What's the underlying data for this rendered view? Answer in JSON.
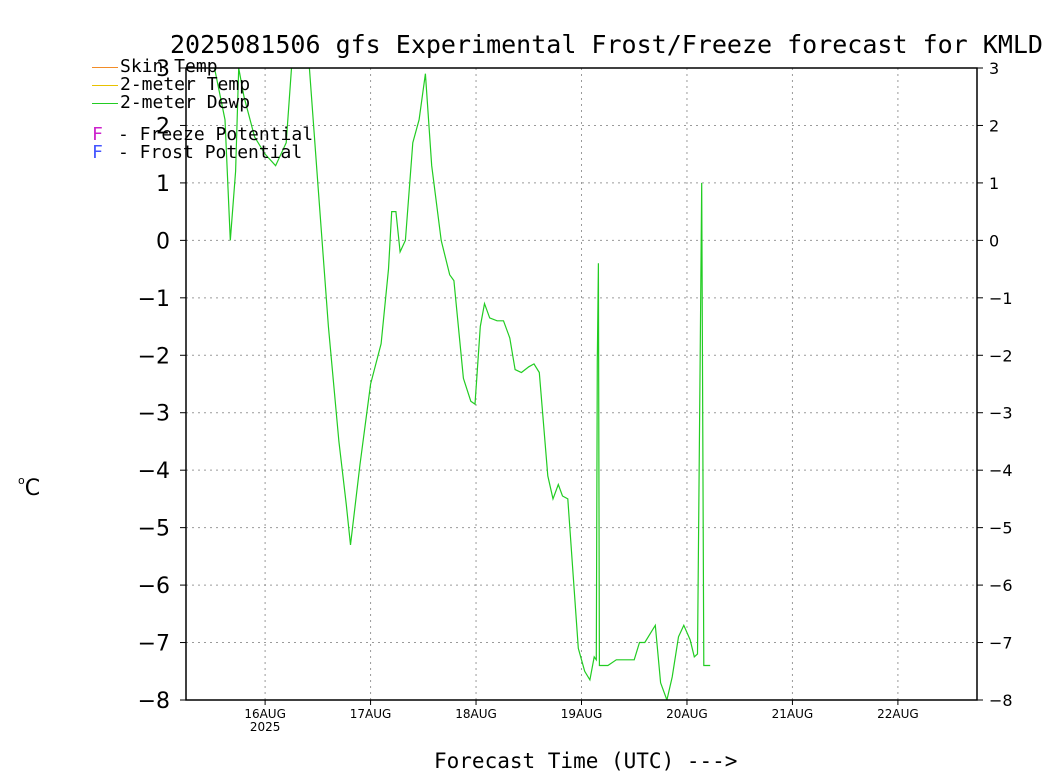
{
  "title": "2025081506 gfs Experimental Frost/Freeze forecast for KMLD",
  "ylabel_unit": "C",
  "ylabel_degree": "o",
  "xlabel": "Forecast Time (UTC) --->",
  "legend": {
    "skin_temp": {
      "label": "Skin Temp",
      "color": "#f28c28"
    },
    "temp_2m": {
      "label": "2-meter Temp",
      "color": "#e8c200"
    },
    "dewp_2m": {
      "label": "2-meter Dewp",
      "color": "#22cc22"
    },
    "freeze": {
      "letter": "F",
      "text": "- Freeze Potential",
      "color": "#cc22cc"
    },
    "frost": {
      "letter": "F",
      "text": "- Frost Potential",
      "color": "#4455ff"
    }
  },
  "chart_data": {
    "type": "line",
    "title": "2025081506 gfs Experimental Frost/Freeze forecast for KMLD",
    "xlabel": "Forecast Time (UTC) --->",
    "ylabel": "°C",
    "ylim": [
      -8,
      3
    ],
    "yticks": [
      -8,
      -7,
      -6,
      -5,
      -4,
      -3,
      -2,
      -1,
      0,
      1,
      2,
      3
    ],
    "x_ticks": [
      {
        "label": "16AUG",
        "sub": "2025",
        "day": 16.0
      },
      {
        "label": "17AUG",
        "sub": "",
        "day": 17.0
      },
      {
        "label": "18AUG",
        "sub": "",
        "day": 18.0
      },
      {
        "label": "19AUG",
        "sub": "",
        "day": 19.0
      },
      {
        "label": "20AUG",
        "sub": "",
        "day": 20.0
      },
      {
        "label": "21AUG",
        "sub": "",
        "day": 21.0
      },
      {
        "label": "22AUG",
        "sub": "",
        "day": 22.0
      }
    ],
    "xlim_day": [
      15.25,
      22.75
    ],
    "grid": true,
    "legend_position": "top-left",
    "series": [
      {
        "name": "2-meter Dewp",
        "color": "#22cc22",
        "points": [
          [
            15.52,
            3.0
          ],
          [
            15.62,
            2.1
          ],
          [
            15.67,
            0.0
          ],
          [
            15.72,
            1.2
          ],
          [
            15.75,
            3.0
          ],
          [
            15.8,
            2.5
          ],
          [
            15.9,
            1.8
          ],
          [
            16.0,
            1.5
          ],
          [
            16.1,
            1.3
          ],
          [
            16.2,
            1.7
          ],
          [
            16.25,
            3.0
          ],
          [
            16.42,
            3.0
          ],
          [
            16.5,
            1.0
          ],
          [
            16.6,
            -1.5
          ],
          [
            16.7,
            -3.5
          ],
          [
            16.77,
            -4.6
          ],
          [
            16.81,
            -5.3
          ],
          [
            16.9,
            -3.9
          ],
          [
            17.0,
            -2.5
          ],
          [
            17.1,
            -1.8
          ],
          [
            17.17,
            -0.5
          ],
          [
            17.2,
            0.5
          ],
          [
            17.24,
            0.5
          ],
          [
            17.28,
            -0.2
          ],
          [
            17.33,
            0.0
          ],
          [
            17.4,
            1.7
          ],
          [
            17.46,
            2.1
          ],
          [
            17.52,
            2.9
          ],
          [
            17.58,
            1.3
          ],
          [
            17.67,
            0.0
          ],
          [
            17.75,
            -0.6
          ],
          [
            17.79,
            -0.7
          ],
          [
            17.88,
            -2.4
          ],
          [
            17.95,
            -2.8
          ],
          [
            17.99,
            -2.85
          ],
          [
            18.04,
            -1.5
          ],
          [
            18.08,
            -1.1
          ],
          [
            18.13,
            -1.35
          ],
          [
            18.2,
            -1.4
          ],
          [
            18.26,
            -1.4
          ],
          [
            18.32,
            -1.7
          ],
          [
            18.37,
            -2.25
          ],
          [
            18.43,
            -2.3
          ],
          [
            18.5,
            -2.2
          ],
          [
            18.55,
            -2.15
          ],
          [
            18.6,
            -2.3
          ],
          [
            18.68,
            -4.1
          ],
          [
            18.73,
            -4.5
          ],
          [
            18.78,
            -4.25
          ],
          [
            18.82,
            -4.45
          ],
          [
            18.87,
            -4.5
          ],
          [
            18.97,
            -7.1
          ],
          [
            19.03,
            -7.5
          ],
          [
            19.08,
            -7.65
          ],
          [
            19.12,
            -7.25
          ],
          [
            19.14,
            -7.3
          ],
          [
            19.15,
            -2.1
          ],
          [
            19.16,
            -0.4
          ],
          [
            19.17,
            -7.4
          ],
          [
            19.25,
            -7.4
          ],
          [
            19.33,
            -7.3
          ],
          [
            19.45,
            -7.3
          ],
          [
            19.5,
            -7.3
          ],
          [
            19.55,
            -7.0
          ],
          [
            19.6,
            -7.0
          ],
          [
            19.7,
            -6.7
          ],
          [
            19.75,
            -7.7
          ],
          [
            19.81,
            -8.0
          ],
          [
            19.86,
            -7.6
          ],
          [
            19.92,
            -6.9
          ],
          [
            19.97,
            -6.7
          ],
          [
            20.03,
            -6.95
          ],
          [
            20.07,
            -7.25
          ],
          [
            20.1,
            -7.2
          ],
          [
            20.13,
            -1.0
          ],
          [
            20.14,
            1.0
          ],
          [
            20.16,
            -7.4
          ],
          [
            20.22,
            -7.4
          ]
        ]
      }
    ]
  }
}
